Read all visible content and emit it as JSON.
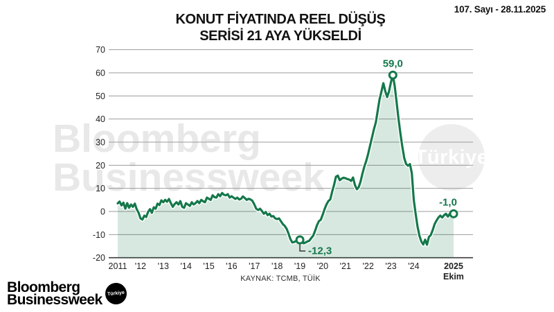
{
  "header": {
    "issue": "107. Sayı - 28.11.2025",
    "title_line1": "KONUT FİYATINDA REEL DÜŞÜŞ",
    "title_line2": "SERİSİ 21 AYA YÜKSELDİ"
  },
  "watermark": {
    "line1": "Bloomberg",
    "line2": "Businessweek",
    "badge": "Türkiye"
  },
  "footer": {
    "logo_line1": "Bloomberg",
    "logo_line2": "Businessweek",
    "logo_badge": "Türkiye"
  },
  "colors": {
    "line": "#14784a",
    "fill": "#14784a",
    "fill_opacity": "0.17",
    "grid": "#9b9b9b",
    "axis": "#3a3a3a",
    "annotation": "#14784a",
    "connector": "#333333",
    "tick_text": "#222222"
  },
  "chart_data": {
    "type": "area",
    "title": "KONUT FİYATINDA REEL DÜŞÜŞ SERİSİ 21 AYA YÜKSELDİ",
    "source": "KAYNAK: TCMB, TÜİK",
    "frequency": "monthly",
    "x_start": "2011-01",
    "x_end": "2025-10",
    "ylim": [
      -20,
      70
    ],
    "grid": true,
    "yticks": [
      70,
      60,
      50,
      40,
      30,
      20,
      10,
      0,
      -10,
      -20
    ],
    "xticks": [
      "2011",
      "'12",
      "'13",
      "'14",
      "'15",
      "'16",
      "'17",
      "'18",
      "'19",
      "'20",
      "'21",
      "'22",
      "'23",
      "'24"
    ],
    "xtick_last": {
      "label": "2025",
      "sublabel": "Ekim"
    },
    "values": [
      3.5,
      4.3,
      2.6,
      3.8,
      1.2,
      3.6,
      1.6,
      3.0,
      2.0,
      3.4,
      1.0,
      -0.5,
      -3.0,
      -3.5,
      -1.8,
      -2.4,
      -0.2,
      1.0,
      -0.6,
      1.8,
      1.2,
      3.4,
      2.8,
      4.8,
      4.0,
      5.0,
      4.2,
      5.4,
      3.6,
      2.0,
      3.2,
      4.0,
      3.0,
      4.5,
      2.0,
      1.6,
      3.6,
      3.0,
      2.4,
      4.0,
      3.0,
      3.6,
      4.5,
      3.6,
      5.0,
      4.4,
      4.0,
      6.0,
      5.5,
      5.0,
      7.0,
      6.2,
      6.0,
      7.5,
      6.6,
      8.0,
      7.2,
      7.0,
      7.5,
      6.0,
      6.6,
      6.0,
      5.4,
      6.0,
      5.2,
      5.5,
      6.5,
      5.8,
      5.0,
      5.5,
      5.2,
      4.6,
      3.0,
      1.2,
      0.6,
      1.2,
      0.2,
      -1.0,
      -0.2,
      -1.6,
      -1.0,
      -2.2,
      -2.0,
      -3.0,
      -3.3,
      -3.0,
      -4.2,
      -5.5,
      -6.2,
      -7.5,
      -9.5,
      -12.0,
      -13.4,
      -13.2,
      -12.8,
      -13.0,
      -12.3,
      -13.2,
      -13.8,
      -13.4,
      -13.0,
      -12.6,
      -11.5,
      -10.5,
      -8.4,
      -6.0,
      -4.2,
      -3.6,
      -1.5,
      1.0,
      3.0,
      4.5,
      5.2,
      8.5,
      11.5,
      15.0,
      15.5,
      13.5,
      14.2,
      14.6,
      14.4,
      14.0,
      13.8,
      13.2,
      14.7,
      11.5,
      9.6,
      10.5,
      13.0,
      16.5,
      19.5,
      22.0,
      25.0,
      28.5,
      32.0,
      35.5,
      38.5,
      43.5,
      48.5,
      52.0,
      55.5,
      52.0,
      49.5,
      52.0,
      56.0,
      59.0,
      54.0,
      47.0,
      40.0,
      33.5,
      28.0,
      23.0,
      20.5,
      19.8,
      20.5,
      16.5,
      5.0,
      -1.0,
      -6.5,
      -10.5,
      -13.0,
      -14.3,
      -12.2,
      -14.4,
      -11.0,
      -10.2,
      -8.0,
      -5.5,
      -4.0,
      -2.6,
      -1.8,
      -2.6,
      -1.6,
      -1.0,
      -2.2,
      -1.0,
      -1.8,
      -1.0
    ],
    "annotations": [
      {
        "index": 145,
        "value": 59.0,
        "label": "59,0",
        "placement": "above"
      },
      {
        "index": 96,
        "value": -12.3,
        "label": "-12,3",
        "placement": "connector-below-right"
      },
      {
        "index": 177,
        "value": -1.0,
        "label": "-1,0",
        "placement": "above-left"
      }
    ]
  }
}
